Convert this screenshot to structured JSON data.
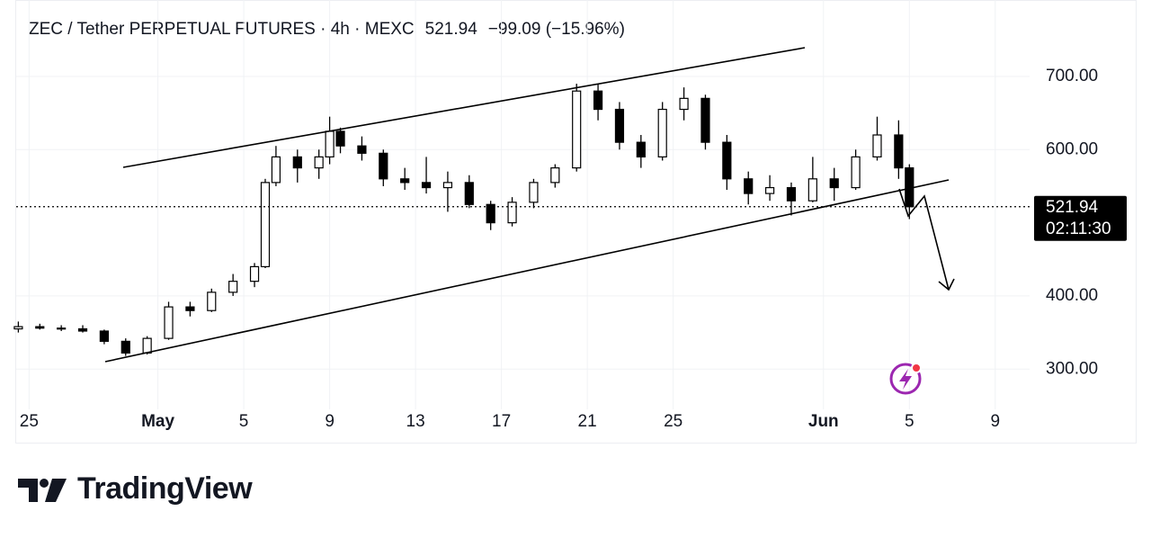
{
  "chart_data": {
    "type": "candlestick",
    "title": "ZEC / Tether PERPETUAL FUTURES · 4h · MEXC",
    "change_label": "−99.09 (−15.96%)",
    "last_price": 521.94,
    "countdown": "02:11:30",
    "x": [
      -0.5,
      0.5,
      1.5,
      2.5,
      3.5,
      4.5,
      5.5,
      6.5,
      7.5,
      8.5,
      9.5,
      10.5,
      11,
      11.5,
      12.5,
      13.5,
      14,
      14.5,
      15.5,
      16.5,
      17.5,
      18.5,
      19.5,
      20.5,
      21.5,
      22.5,
      23.5,
      24.5,
      25.5,
      26.5,
      27.5,
      28.5,
      29.5,
      30.5,
      31.5,
      32.5,
      33.5,
      34.5,
      35.5,
      36.5,
      37.5,
      38.5,
      39.5,
      40.5,
      41
    ],
    "open": [
      355,
      358,
      356,
      355,
      352,
      338,
      322,
      342,
      385,
      380,
      405,
      420,
      440,
      555,
      590,
      575,
      590,
      625,
      605,
      595,
      560,
      555,
      548,
      555,
      525,
      500,
      528,
      555,
      575,
      680,
      655,
      610,
      590,
      655,
      670,
      610,
      560,
      540,
      548,
      530,
      560,
      548,
      590,
      620,
      575
    ],
    "high": [
      365,
      362,
      360,
      360,
      354,
      342,
      345,
      392,
      392,
      410,
      430,
      445,
      560,
      605,
      600,
      600,
      645,
      630,
      618,
      600,
      575,
      590,
      570,
      565,
      530,
      535,
      560,
      580,
      690,
      690,
      665,
      620,
      665,
      685,
      675,
      620,
      570,
      565,
      555,
      590,
      575,
      600,
      645,
      640,
      580
    ],
    "low": [
      350,
      354,
      352,
      350,
      334,
      318,
      320,
      340,
      372,
      378,
      400,
      412,
      438,
      550,
      555,
      560,
      580,
      595,
      585,
      550,
      545,
      540,
      515,
      520,
      490,
      495,
      520,
      548,
      570,
      640,
      600,
      575,
      585,
      640,
      600,
      545,
      525,
      530,
      510,
      528,
      530,
      545,
      585,
      560,
      505
    ],
    "close": [
      358,
      356,
      355,
      352,
      338,
      322,
      342,
      385,
      380,
      405,
      420,
      440,
      555,
      590,
      575,
      590,
      625,
      605,
      595,
      560,
      555,
      548,
      555,
      525,
      500,
      528,
      555,
      575,
      680,
      655,
      610,
      590,
      655,
      670,
      610,
      560,
      540,
      548,
      530,
      560,
      548,
      590,
      620,
      575,
      521.94
    ],
    "xlim": [
      -0.6,
      46.6
    ],
    "ylim": [
      245,
      786
    ],
    "xticks": [
      {
        "value": 0,
        "label": "25"
      },
      {
        "value": 6,
        "label": "May"
      },
      {
        "value": 10,
        "label": "5"
      },
      {
        "value": 14,
        "label": "9"
      },
      {
        "value": 18,
        "label": "13"
      },
      {
        "value": 22,
        "label": "17"
      },
      {
        "value": 26,
        "label": "21"
      },
      {
        "value": 30,
        "label": "25"
      },
      {
        "value": 37,
        "label": "Jun"
      },
      {
        "value": 41,
        "label": "5"
      },
      {
        "value": 45,
        "label": "9"
      }
    ],
    "yticks": [
      {
        "value": 300,
        "label": "300.00"
      },
      {
        "value": 400,
        "label": "400.00"
      },
      {
        "value": 600,
        "label": "600.00"
      },
      {
        "value": 700,
        "label": "700.00"
      }
    ],
    "grid": true,
    "up_color": "#ffffff",
    "down_color": "#000000"
  },
  "footer": {
    "brand": "TradingView"
  }
}
